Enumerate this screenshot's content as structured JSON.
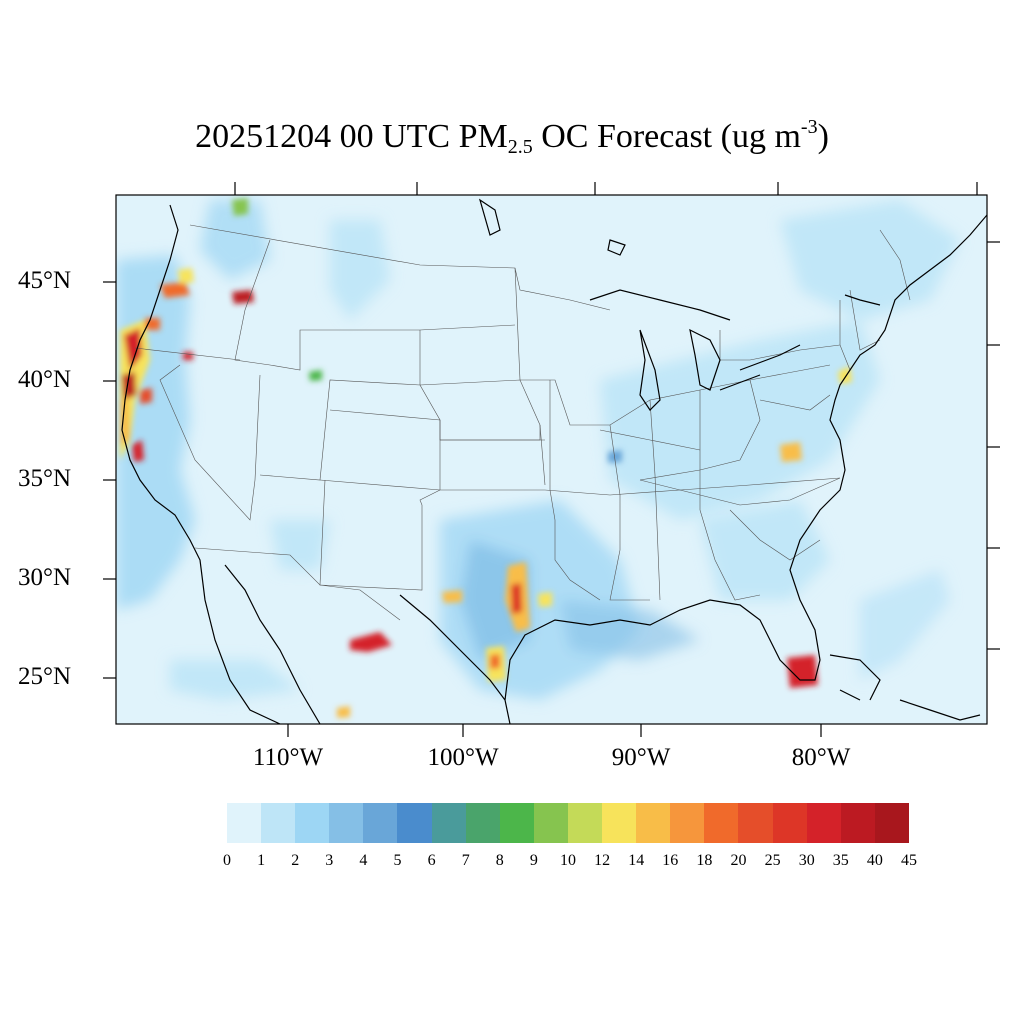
{
  "title": {
    "prefix": "20251204 00 UTC PM",
    "subscript": "2.5",
    "middle": " OC Forecast (ug m",
    "superscript": "-3",
    "suffix": ")"
  },
  "map": {
    "lat_labels": [
      "45°N",
      "40°N",
      "35°N",
      "30°N",
      "25°N"
    ],
    "lon_labels": [
      "110°W",
      "100°W",
      "90°W",
      "80°W"
    ],
    "background_color": "#e0f3fb"
  },
  "colorbar": {
    "tick_labels": [
      "0",
      "1",
      "2",
      "3",
      "4",
      "5",
      "6",
      "7",
      "8",
      "9",
      "10",
      "12",
      "14",
      "16",
      "18",
      "20",
      "25",
      "30",
      "35",
      "40",
      "45"
    ],
    "colors": [
      "#e0f3fb",
      "#bee5f7",
      "#9dd6f4",
      "#85bfe6",
      "#69a6d8",
      "#4a8ccd",
      "#4a9b9b",
      "#4aa46b",
      "#4cb64a",
      "#86c44f",
      "#c4da58",
      "#f7e35b",
      "#f8bd48",
      "#f6963c",
      "#f06a2b",
      "#e54e2a",
      "#dd3627",
      "#d42229",
      "#bc1a22",
      "#a8171d",
      "#921519"
    ]
  },
  "chart_data": {
    "type": "heatmap",
    "title": "20251204 00 UTC PM2.5 OC Forecast (ug m-3)",
    "xlabel": "",
    "ylabel": "",
    "x_ticks": [
      "110°W",
      "100°W",
      "90°W",
      "80°W"
    ],
    "y_ticks": [
      "45°N",
      "40°N",
      "35°N",
      "30°N",
      "25°N"
    ],
    "levels": [
      0,
      1,
      2,
      3,
      4,
      5,
      6,
      7,
      8,
      9,
      10,
      12,
      14,
      16,
      18,
      20,
      25,
      30,
      35,
      40,
      45
    ],
    "hotspots": [
      {
        "lon": -124.0,
        "lat": 41.5,
        "value": 35
      },
      {
        "lon": -123.8,
        "lat": 39.5,
        "value": 40
      },
      {
        "lon": -123.5,
        "lat": 37.5,
        "value": 18
      },
      {
        "lon": -122.8,
        "lat": 36.5,
        "value": 35
      },
      {
        "lon": -116.0,
        "lat": 44.3,
        "value": 40
      },
      {
        "lon": -122.0,
        "lat": 43.5,
        "value": 35
      },
      {
        "lon": -120.5,
        "lat": 41.2,
        "value": 30
      },
      {
        "lon": -104.8,
        "lat": 26.8,
        "value": 35
      },
      {
        "lon": -97.0,
        "lat": 29.0,
        "value": 20
      },
      {
        "lon": -98.0,
        "lat": 25.7,
        "value": 14
      },
      {
        "lon": -95.2,
        "lat": 28.8,
        "value": 12
      },
      {
        "lon": -100.5,
        "lat": 29.1,
        "value": 12
      },
      {
        "lon": -80.8,
        "lat": 25.3,
        "value": 45
      },
      {
        "lon": -81.5,
        "lat": 36.3,
        "value": 16
      },
      {
        "lon": -74.2,
        "lat": 40.6,
        "value": 14
      },
      {
        "lon": -108.0,
        "lat": 40.2,
        "value": 10
      },
      {
        "lon": -106.5,
        "lat": 23.3,
        "value": 12
      }
    ]
  }
}
